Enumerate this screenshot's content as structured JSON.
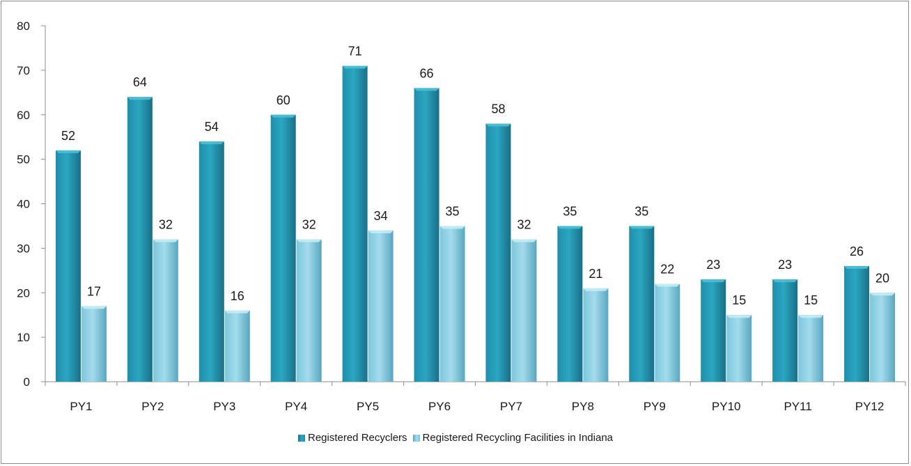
{
  "chart_data": {
    "type": "bar",
    "categories": [
      "PY1",
      "PY2",
      "PY3",
      "PY4",
      "PY5",
      "PY6",
      "PY7",
      "PY8",
      "PY9",
      "PY10",
      "PY11",
      "PY12"
    ],
    "series": [
      {
        "name": "Registered Recyclers",
        "values": [
          52,
          64,
          54,
          60,
          71,
          66,
          58,
          35,
          35,
          23,
          23,
          26
        ],
        "color": "#2aa0bc"
      },
      {
        "name": "Registered Recycling Facilities in Indiana",
        "values": [
          17,
          32,
          16,
          32,
          34,
          35,
          32,
          21,
          22,
          15,
          15,
          20
        ],
        "color": "#8ed1e6"
      }
    ],
    "yticks": [
      0,
      10,
      20,
      30,
      40,
      50,
      60,
      70,
      80
    ],
    "ylim": [
      0,
      80
    ],
    "grid": false,
    "data_labels": true,
    "legend_position": "bottom"
  }
}
